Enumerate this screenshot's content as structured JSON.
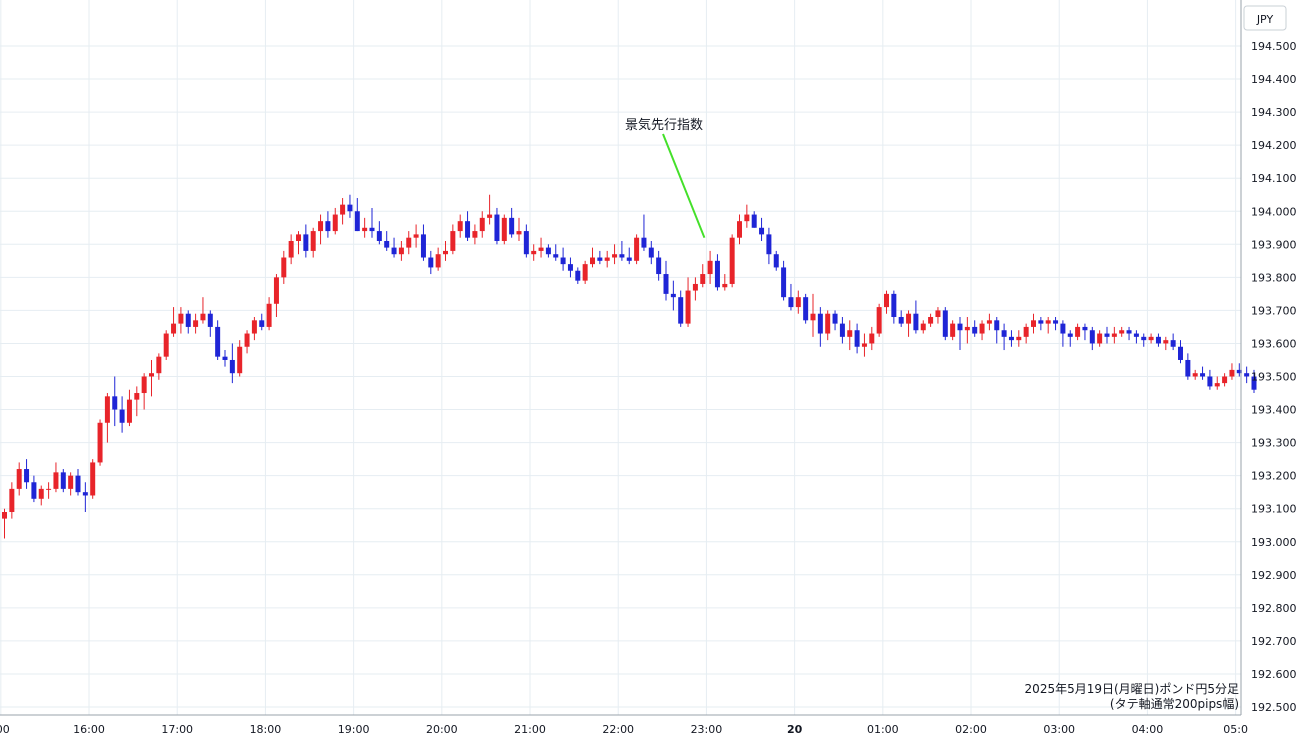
{
  "chart_data": {
    "type": "candlestick",
    "currency_label": "JPY",
    "caption_line1": "2025年5月19日(月曜日)ポンド円5分足",
    "caption_line2": "(タテ軸通常200pips幅)",
    "annotation": {
      "text": "景気先行指数",
      "at_time": "23:00",
      "price": 193.92
    },
    "ylim": [
      192.5,
      194.5
    ],
    "y_ticks": [
      "194.500",
      "194.400",
      "194.300",
      "194.200",
      "194.100",
      "194.000",
      "193.900",
      "193.800",
      "193.700",
      "193.600",
      "193.500",
      "193.400",
      "193.300",
      "193.200",
      "193.100",
      "193.000",
      "192.900",
      "192.800",
      "192.700",
      "192.600",
      "192.500"
    ],
    "x_ticks": [
      {
        "label": ":00",
        "bar": -0.5
      },
      {
        "label": "16:00",
        "bar": 11.5
      },
      {
        "label": "17:00",
        "bar": 23.5
      },
      {
        "label": "18:00",
        "bar": 35.5
      },
      {
        "label": "19:00",
        "bar": 47.5
      },
      {
        "label": "20:00",
        "bar": 59.5
      },
      {
        "label": "21:00",
        "bar": 71.5
      },
      {
        "label": "22:00",
        "bar": 83.5
      },
      {
        "label": "23:00",
        "bar": 95.5
      },
      {
        "label": "20",
        "bar": 107.5,
        "bold": true
      },
      {
        "label": "01:00",
        "bar": 119.5
      },
      {
        "label": "02:00",
        "bar": 131.5
      },
      {
        "label": "03:00",
        "bar": 143.5
      },
      {
        "label": "04:00",
        "bar": 155.5
      },
      {
        "label": "05:0",
        "bar": 167.5
      }
    ],
    "colors": {
      "up": "#e8242a",
      "down": "#1f25d6",
      "annotation_line": "#44e02a",
      "grid": "#e6edf2"
    },
    "candles": [
      [
        193.07,
        193.1,
        193.01,
        193.09
      ],
      [
        193.09,
        193.18,
        193.07,
        193.16
      ],
      [
        193.16,
        193.24,
        193.14,
        193.22
      ],
      [
        193.22,
        193.25,
        193.16,
        193.18
      ],
      [
        193.18,
        193.2,
        193.12,
        193.13
      ],
      [
        193.13,
        193.17,
        193.11,
        193.16
      ],
      [
        193.16,
        193.18,
        193.13,
        193.16
      ],
      [
        193.16,
        193.24,
        193.15,
        193.21
      ],
      [
        193.21,
        193.22,
        193.15,
        193.16
      ],
      [
        193.16,
        193.21,
        193.14,
        193.2
      ],
      [
        193.2,
        193.22,
        193.14,
        193.15
      ],
      [
        193.15,
        193.18,
        193.09,
        193.14
      ],
      [
        193.14,
        193.25,
        193.13,
        193.24
      ],
      [
        193.24,
        193.37,
        193.23,
        193.36
      ],
      [
        193.36,
        193.45,
        193.3,
        193.44
      ],
      [
        193.44,
        193.5,
        193.35,
        193.4
      ],
      [
        193.4,
        193.44,
        193.33,
        193.36
      ],
      [
        193.36,
        193.46,
        193.35,
        193.43
      ],
      [
        193.43,
        193.47,
        193.38,
        193.45
      ],
      [
        193.45,
        193.51,
        193.4,
        193.5
      ],
      [
        193.5,
        193.55,
        193.44,
        193.51
      ],
      [
        193.51,
        193.57,
        193.49,
        193.56
      ],
      [
        193.56,
        193.64,
        193.55,
        193.63
      ],
      [
        193.63,
        193.71,
        193.62,
        193.66
      ],
      [
        193.66,
        193.71,
        193.63,
        193.69
      ],
      [
        193.69,
        193.7,
        193.63,
        193.65
      ],
      [
        193.65,
        193.69,
        193.63,
        193.67
      ],
      [
        193.67,
        193.74,
        193.66,
        193.69
      ],
      [
        193.69,
        193.7,
        193.62,
        193.65
      ],
      [
        193.65,
        193.67,
        193.55,
        193.56
      ],
      [
        193.56,
        193.58,
        193.53,
        193.55
      ],
      [
        193.55,
        193.6,
        193.48,
        193.51
      ],
      [
        193.51,
        193.61,
        193.5,
        193.59
      ],
      [
        193.59,
        193.64,
        193.57,
        193.63
      ],
      [
        193.63,
        193.68,
        193.61,
        193.67
      ],
      [
        193.67,
        193.69,
        193.64,
        193.65
      ],
      [
        193.65,
        193.74,
        193.64,
        193.72
      ],
      [
        193.72,
        193.81,
        193.68,
        193.8
      ],
      [
        193.8,
        193.88,
        193.78,
        193.86
      ],
      [
        193.86,
        193.93,
        193.84,
        193.91
      ],
      [
        193.91,
        193.94,
        193.87,
        193.93
      ],
      [
        193.93,
        193.96,
        193.86,
        193.88
      ],
      [
        193.88,
        193.95,
        193.86,
        193.94
      ],
      [
        193.94,
        193.99,
        193.9,
        193.97
      ],
      [
        193.97,
        194.0,
        193.92,
        193.94
      ],
      [
        193.94,
        194.01,
        193.93,
        193.99
      ],
      [
        193.99,
        194.04,
        193.96,
        194.02
      ],
      [
        194.02,
        194.05,
        193.98,
        194.0
      ],
      [
        194.0,
        194.04,
        193.94,
        193.94
      ],
      [
        193.94,
        193.98,
        193.92,
        193.95
      ],
      [
        193.95,
        194.01,
        193.92,
        193.94
      ],
      [
        193.94,
        193.97,
        193.9,
        193.91
      ],
      [
        193.91,
        193.94,
        193.88,
        193.89
      ],
      [
        193.89,
        193.92,
        193.86,
        193.87
      ],
      [
        193.87,
        193.91,
        193.85,
        193.89
      ],
      [
        193.89,
        193.94,
        193.87,
        193.92
      ],
      [
        193.92,
        193.96,
        193.89,
        193.93
      ],
      [
        193.93,
        193.96,
        193.85,
        193.86
      ],
      [
        193.86,
        193.88,
        193.81,
        193.83
      ],
      [
        193.83,
        193.89,
        193.82,
        193.87
      ],
      [
        193.87,
        193.91,
        193.85,
        193.88
      ],
      [
        193.88,
        193.96,
        193.87,
        193.94
      ],
      [
        193.94,
        193.99,
        193.92,
        193.97
      ],
      [
        193.97,
        194.0,
        193.91,
        193.92
      ],
      [
        193.92,
        193.96,
        193.9,
        193.94
      ],
      [
        193.94,
        194.0,
        193.92,
        193.98
      ],
      [
        193.98,
        194.05,
        193.96,
        193.99
      ],
      [
        193.99,
        194.01,
        193.9,
        193.91
      ],
      [
        193.91,
        193.99,
        193.9,
        193.98
      ],
      [
        193.98,
        194.01,
        193.92,
        193.93
      ],
      [
        193.93,
        193.98,
        193.91,
        193.94
      ],
      [
        193.94,
        193.96,
        193.86,
        193.87
      ],
      [
        193.87,
        193.9,
        193.85,
        193.88
      ],
      [
        193.88,
        193.92,
        193.86,
        193.89
      ],
      [
        193.89,
        193.9,
        193.86,
        193.87
      ],
      [
        193.87,
        193.9,
        193.85,
        193.86
      ],
      [
        193.86,
        193.89,
        193.82,
        193.84
      ],
      [
        193.84,
        193.86,
        193.8,
        193.82
      ],
      [
        193.82,
        193.83,
        193.78,
        193.79
      ],
      [
        193.79,
        193.85,
        193.78,
        193.84
      ],
      [
        193.84,
        193.89,
        193.83,
        193.86
      ],
      [
        193.86,
        193.88,
        193.84,
        193.85
      ],
      [
        193.85,
        193.88,
        193.83,
        193.86
      ],
      [
        193.86,
        193.9,
        193.84,
        193.87
      ],
      [
        193.87,
        193.91,
        193.85,
        193.86
      ],
      [
        193.86,
        193.89,
        193.84,
        193.85
      ],
      [
        193.85,
        193.93,
        193.84,
        193.92
      ],
      [
        193.92,
        193.99,
        193.88,
        193.89
      ],
      [
        193.89,
        193.91,
        193.84,
        193.86
      ],
      [
        193.86,
        193.88,
        193.79,
        193.81
      ],
      [
        193.81,
        193.85,
        193.73,
        193.75
      ],
      [
        193.75,
        193.79,
        193.7,
        193.74
      ],
      [
        193.74,
        193.76,
        193.65,
        193.66
      ],
      [
        193.66,
        193.8,
        193.65,
        193.76
      ],
      [
        193.76,
        193.8,
        193.73,
        193.78
      ],
      [
        193.78,
        193.84,
        193.77,
        193.81
      ],
      [
        193.81,
        193.88,
        193.78,
        193.85
      ],
      [
        193.85,
        193.87,
        193.76,
        193.77
      ],
      [
        193.77,
        193.81,
        193.76,
        193.78
      ],
      [
        193.78,
        193.93,
        193.77,
        193.92
      ],
      [
        193.92,
        193.99,
        193.9,
        193.97
      ],
      [
        193.97,
        194.02,
        193.95,
        193.99
      ],
      [
        193.99,
        194.0,
        193.95,
        193.95
      ],
      [
        193.95,
        193.98,
        193.91,
        193.93
      ],
      [
        193.93,
        193.95,
        193.84,
        193.87
      ],
      [
        193.87,
        193.88,
        193.82,
        193.83
      ],
      [
        193.83,
        193.85,
        193.73,
        193.74
      ],
      [
        193.74,
        193.78,
        193.7,
        193.71
      ],
      [
        193.71,
        193.76,
        193.69,
        193.74
      ],
      [
        193.74,
        193.75,
        193.66,
        193.67
      ],
      [
        193.67,
        193.75,
        193.62,
        193.69
      ],
      [
        193.69,
        193.71,
        193.59,
        193.63
      ],
      [
        193.63,
        193.7,
        193.61,
        193.69
      ],
      [
        193.69,
        193.7,
        193.64,
        193.66
      ],
      [
        193.66,
        193.68,
        193.6,
        193.62
      ],
      [
        193.62,
        193.67,
        193.58,
        193.64
      ],
      [
        193.64,
        193.66,
        193.57,
        193.59
      ],
      [
        193.59,
        193.63,
        193.56,
        193.6
      ],
      [
        193.6,
        193.65,
        193.58,
        193.63
      ],
      [
        193.63,
        193.72,
        193.62,
        193.71
      ],
      [
        193.71,
        193.76,
        193.69,
        193.75
      ],
      [
        193.75,
        193.76,
        193.66,
        193.68
      ],
      [
        193.68,
        193.7,
        193.65,
        193.66
      ],
      [
        193.66,
        193.7,
        193.62,
        193.69
      ],
      [
        193.69,
        193.73,
        193.63,
        193.64
      ],
      [
        193.64,
        193.67,
        193.63,
        193.66
      ],
      [
        193.66,
        193.69,
        193.65,
        193.68
      ],
      [
        193.68,
        193.71,
        193.66,
        193.7
      ],
      [
        193.7,
        193.71,
        193.61,
        193.62
      ],
      [
        193.62,
        193.67,
        193.61,
        193.66
      ],
      [
        193.66,
        193.68,
        193.58,
        193.64
      ],
      [
        193.64,
        193.68,
        193.6,
        193.65
      ],
      [
        193.65,
        193.67,
        193.62,
        193.63
      ],
      [
        193.63,
        193.67,
        193.61,
        193.66
      ],
      [
        193.66,
        193.69,
        193.64,
        193.67
      ],
      [
        193.67,
        193.68,
        193.6,
        193.64
      ],
      [
        193.64,
        193.66,
        193.58,
        193.62
      ],
      [
        193.62,
        193.64,
        193.59,
        193.61
      ],
      [
        193.61,
        193.64,
        193.59,
        193.62
      ],
      [
        193.62,
        193.66,
        193.6,
        193.65
      ],
      [
        193.65,
        193.69,
        193.63,
        193.67
      ],
      [
        193.67,
        193.68,
        193.64,
        193.66
      ],
      [
        193.66,
        193.68,
        193.63,
        193.67
      ],
      [
        193.67,
        193.68,
        193.64,
        193.66
      ],
      [
        193.66,
        193.67,
        193.59,
        193.63
      ],
      [
        193.63,
        193.64,
        193.59,
        193.62
      ],
      [
        193.62,
        193.66,
        193.61,
        193.65
      ],
      [
        193.65,
        193.66,
        193.61,
        193.64
      ],
      [
        193.64,
        193.65,
        193.58,
        193.6
      ],
      [
        193.6,
        193.64,
        193.59,
        193.63
      ],
      [
        193.63,
        193.65,
        193.6,
        193.62
      ],
      [
        193.62,
        193.65,
        193.6,
        193.63
      ],
      [
        193.63,
        193.65,
        193.62,
        193.64
      ],
      [
        193.64,
        193.65,
        193.61,
        193.63
      ],
      [
        193.63,
        193.64,
        193.6,
        193.62
      ],
      [
        193.62,
        193.63,
        193.59,
        193.61
      ],
      [
        193.61,
        193.63,
        193.6,
        193.62
      ],
      [
        193.62,
        193.63,
        193.59,
        193.6
      ],
      [
        193.6,
        193.62,
        193.58,
        193.61
      ],
      [
        193.61,
        193.63,
        193.58,
        193.59
      ],
      [
        193.59,
        193.61,
        193.54,
        193.55
      ],
      [
        193.55,
        193.57,
        193.49,
        193.5
      ],
      [
        193.5,
        193.52,
        193.49,
        193.51
      ],
      [
        193.51,
        193.53,
        193.49,
        193.5
      ],
      [
        193.5,
        193.52,
        193.46,
        193.47
      ],
      [
        193.47,
        193.5,
        193.46,
        193.48
      ],
      [
        193.48,
        193.51,
        193.47,
        193.5
      ],
      [
        193.5,
        193.54,
        193.49,
        193.52
      ],
      [
        193.52,
        193.54,
        193.5,
        193.51
      ],
      [
        193.51,
        193.53,
        193.48,
        193.5
      ],
      [
        193.5,
        193.52,
        193.45,
        193.46
      ]
    ]
  }
}
